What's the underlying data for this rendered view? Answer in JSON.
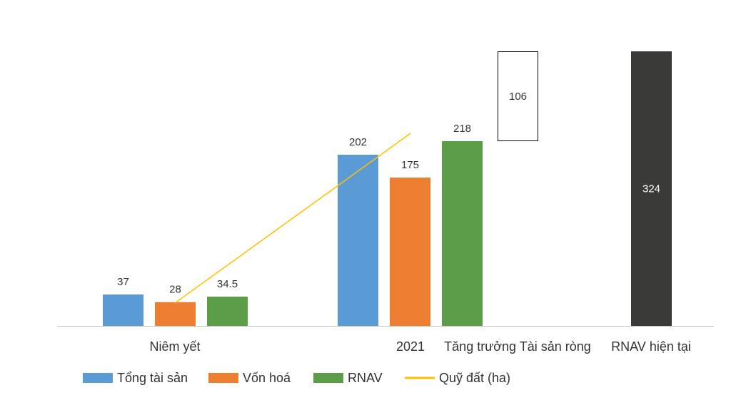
{
  "chart_data": {
    "type": "bar",
    "categories": [
      "Niêm yết",
      "2021",
      "Tăng trưởng Tài sản ròng",
      "RNAV hiện tại"
    ],
    "series": [
      {
        "name": "Tổng tài sản",
        "color": "#5B9BD5",
        "values": [
          37,
          202,
          null,
          null
        ]
      },
      {
        "name": "Vốn hoá",
        "color": "#ED7D31",
        "values": [
          28,
          175,
          null,
          null
        ]
      },
      {
        "name": "RNAV",
        "color": "#5B9E47",
        "values": [
          34.5,
          218,
          null,
          null
        ]
      },
      {
        "name": "Quỹ đất (ha)",
        "type": "line",
        "color": "#FFC000",
        "values": [
          null,
          null,
          null,
          null
        ]
      }
    ],
    "data_labels": {
      "Tổng tài sản": [
        "37",
        "202"
      ],
      "Vốn hoá": [
        "28",
        "175"
      ],
      "RNAV": [
        "34.5",
        "218"
      ]
    },
    "waterfall": {
      "increase": {
        "category": "Tăng trưởng Tài sản ròng",
        "from": 218,
        "to": 324,
        "value": 106,
        "label": "106",
        "fill": "#ffffff",
        "stroke": "#000000"
      },
      "total": {
        "category": "RNAV hiện tại",
        "value": 324,
        "label": "324",
        "color": "#3A3A38"
      }
    },
    "ylim": [
      0,
      324
    ],
    "legend": {
      "position": "bottom",
      "items": [
        {
          "label": "Tổng tài sản",
          "color": "#5B9BD5",
          "kind": "box"
        },
        {
          "label": "Vốn hoá",
          "color": "#ED7D31",
          "kind": "box"
        },
        {
          "label": "RNAV",
          "color": "#5B9E47",
          "kind": "box"
        },
        {
          "label": "Quỹ đất (ha)",
          "color": "#FFC000",
          "kind": "line"
        }
      ]
    },
    "title": "",
    "xlabel": "",
    "ylabel": "",
    "grid": false
  }
}
